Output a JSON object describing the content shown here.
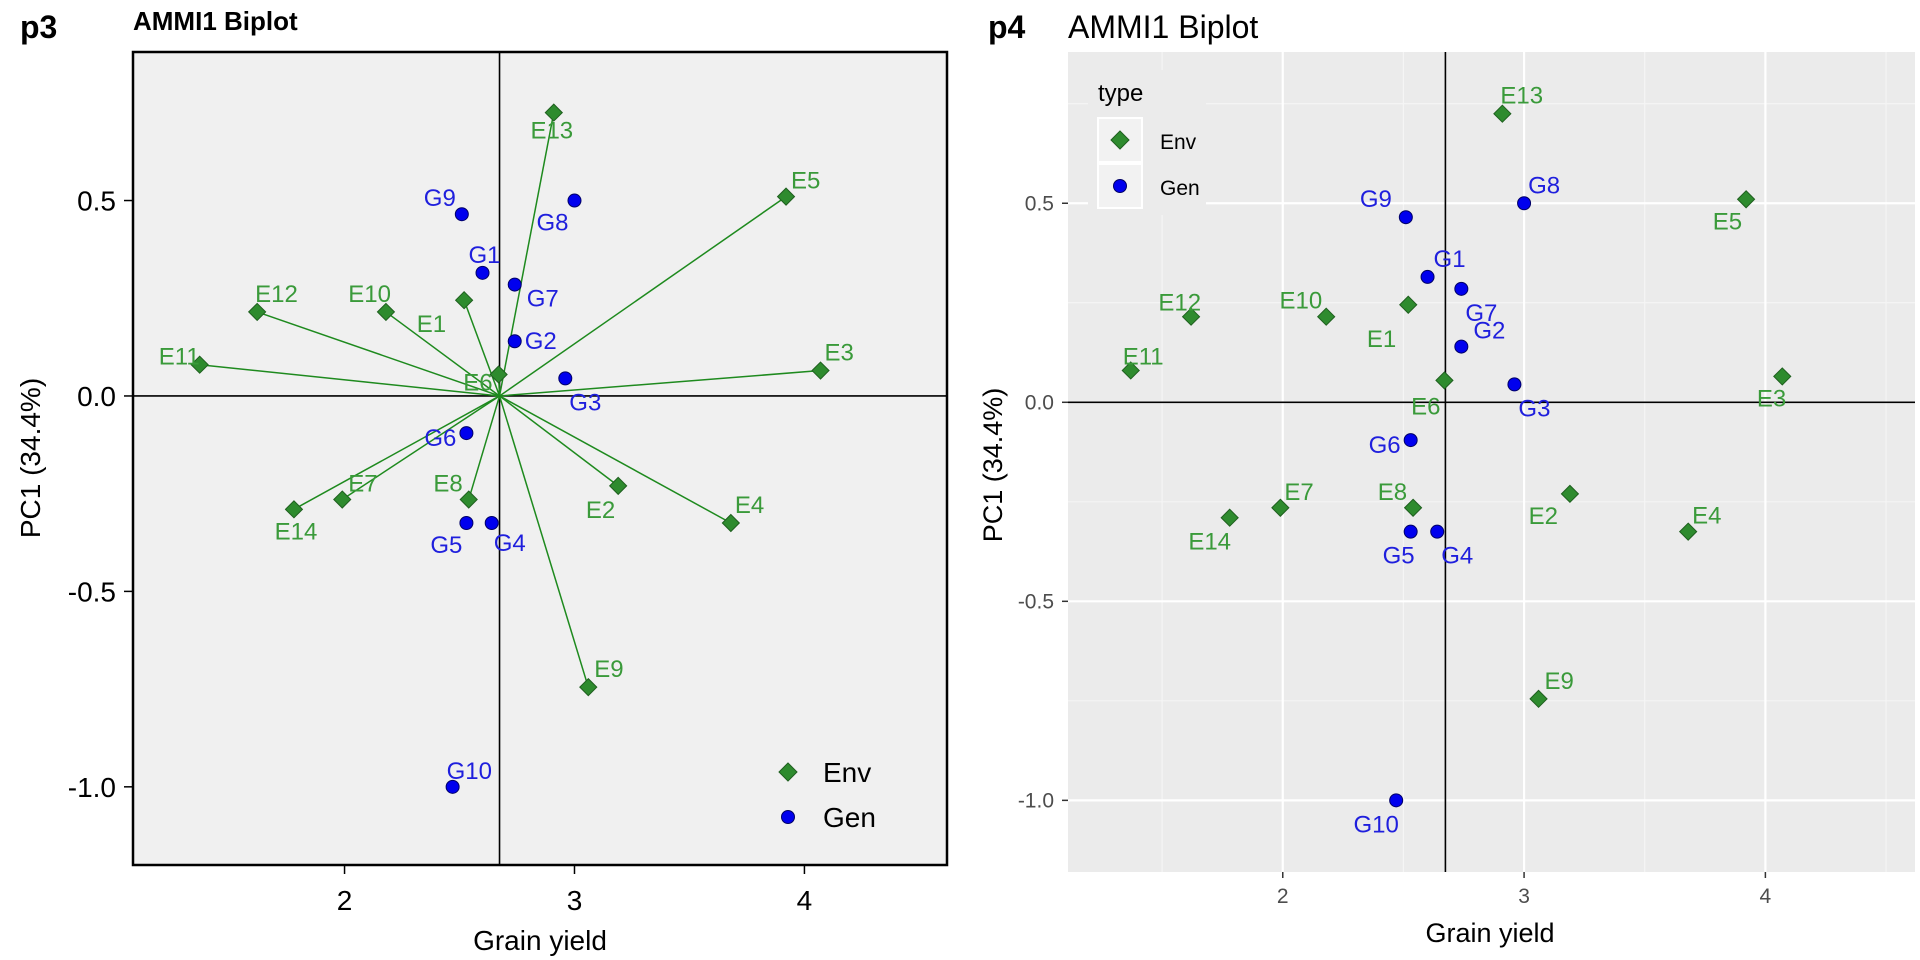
{
  "panels": {
    "p3": {
      "tag": "p3",
      "title": "AMMI1 Biplot",
      "xlabel": "Grain yield",
      "ylabel": "PC1 (34.4%)",
      "legend": {
        "title": "",
        "items": [
          "Env",
          "Gen"
        ]
      }
    },
    "p4": {
      "tag": "p4",
      "title": "AMMI1 Biplot",
      "xlabel": "Grain yield",
      "ylabel": "PC1 (34.4%)",
      "legend": {
        "title": "type",
        "items": [
          "Env",
          "Gen"
        ]
      }
    }
  },
  "colors": {
    "env": "#2e8b2e",
    "env_text": "#3a9a3a",
    "gen": "#0000ee",
    "gen_text": "#1f1fdd"
  },
  "chart_data": [
    {
      "type": "scatter",
      "title": "AMMI1 Biplot",
      "xlabel": "Grain yield",
      "ylabel": "PC1 (34.4%)",
      "xlim": [
        1.08,
        4.62
      ],
      "ylim": [
        -1.2,
        0.88
      ],
      "xticks": [
        2,
        3,
        4
      ],
      "yticks": [
        -1.0,
        -0.5,
        0.0,
        0.5
      ],
      "origin": {
        "x": 2.674,
        "y": 0.0
      },
      "grid": false,
      "legend_position": "bottom-right",
      "vectors_from_origin": "Env",
      "series": [
        {
          "name": "Env",
          "marker": "diamond",
          "points": [
            {
              "label": "E1",
              "x": 2.52,
              "y": 0.245
            },
            {
              "label": "E2",
              "x": 3.19,
              "y": -0.23
            },
            {
              "label": "E3",
              "x": 4.07,
              "y": 0.065
            },
            {
              "label": "E4",
              "x": 3.68,
              "y": -0.325
            },
            {
              "label": "E5",
              "x": 3.92,
              "y": 0.51
            },
            {
              "label": "E6",
              "x": 2.67,
              "y": 0.055
            },
            {
              "label": "E7",
              "x": 1.99,
              "y": -0.265
            },
            {
              "label": "E8",
              "x": 2.54,
              "y": -0.265
            },
            {
              "label": "E9",
              "x": 3.06,
              "y": -0.745
            },
            {
              "label": "E10",
              "x": 2.18,
              "y": 0.215
            },
            {
              "label": "E11",
              "x": 1.37,
              "y": 0.08
            },
            {
              "label": "E12",
              "x": 1.62,
              "y": 0.215
            },
            {
              "label": "E13",
              "x": 2.91,
              "y": 0.725
            },
            {
              "label": "E14",
              "x": 1.78,
              "y": -0.29
            }
          ]
        },
        {
          "name": "Gen",
          "marker": "circle",
          "points": [
            {
              "label": "G1",
              "x": 2.6,
              "y": 0.315
            },
            {
              "label": "G2",
              "x": 2.74,
              "y": 0.14
            },
            {
              "label": "G3",
              "x": 2.96,
              "y": 0.045
            },
            {
              "label": "G4",
              "x": 2.64,
              "y": -0.325
            },
            {
              "label": "G5",
              "x": 2.53,
              "y": -0.325
            },
            {
              "label": "G6",
              "x": 2.53,
              "y": -0.095
            },
            {
              "label": "G7",
              "x": 2.74,
              "y": 0.285
            },
            {
              "label": "G8",
              "x": 3.0,
              "y": 0.5
            },
            {
              "label": "G9",
              "x": 2.51,
              "y": 0.465
            },
            {
              "label": "G10",
              "x": 2.47,
              "y": -1.0
            }
          ]
        }
      ]
    },
    {
      "type": "scatter",
      "title": "AMMI1 Biplot",
      "xlabel": "Grain yield",
      "ylabel": "PC1 (34.4%)",
      "xlim": [
        1.11,
        4.62
      ],
      "ylim": [
        -1.18,
        0.88
      ],
      "xticks": [
        2,
        3,
        4
      ],
      "yticks": [
        -1.0,
        -0.5,
        0.0,
        0.5
      ],
      "origin": {
        "x": 2.674,
        "y": 0.0
      },
      "grid": true,
      "legend_position": "top-left",
      "series": [
        {
          "name": "Env",
          "marker": "diamond",
          "points": [
            {
              "label": "E1",
              "x": 2.52,
              "y": 0.245
            },
            {
              "label": "E2",
              "x": 3.19,
              "y": -0.23
            },
            {
              "label": "E3",
              "x": 4.07,
              "y": 0.065
            },
            {
              "label": "E4",
              "x": 3.68,
              "y": -0.325
            },
            {
              "label": "E5",
              "x": 3.92,
              "y": 0.51
            },
            {
              "label": "E6",
              "x": 2.67,
              "y": 0.055
            },
            {
              "label": "E7",
              "x": 1.99,
              "y": -0.265
            },
            {
              "label": "E8",
              "x": 2.54,
              "y": -0.265
            },
            {
              "label": "E9",
              "x": 3.06,
              "y": -0.745
            },
            {
              "label": "E10",
              "x": 2.18,
              "y": 0.215
            },
            {
              "label": "E11",
              "x": 1.37,
              "y": 0.08
            },
            {
              "label": "E12",
              "x": 1.62,
              "y": 0.215
            },
            {
              "label": "E13",
              "x": 2.91,
              "y": 0.725
            },
            {
              "label": "E14",
              "x": 1.78,
              "y": -0.29
            }
          ]
        },
        {
          "name": "Gen",
          "marker": "circle",
          "points": [
            {
              "label": "G1",
              "x": 2.6,
              "y": 0.315
            },
            {
              "label": "G2",
              "x": 2.74,
              "y": 0.14
            },
            {
              "label": "G3",
              "x": 2.96,
              "y": 0.045
            },
            {
              "label": "G4",
              "x": 2.64,
              "y": -0.325
            },
            {
              "label": "G5",
              "x": 2.53,
              "y": -0.325
            },
            {
              "label": "G6",
              "x": 2.53,
              "y": -0.095
            },
            {
              "label": "G7",
              "x": 2.74,
              "y": 0.285
            },
            {
              "label": "G8",
              "x": 3.0,
              "y": 0.5
            },
            {
              "label": "G9",
              "x": 2.51,
              "y": 0.465
            },
            {
              "label": "G10",
              "x": 2.47,
              "y": -1.0
            }
          ]
        }
      ]
    }
  ]
}
